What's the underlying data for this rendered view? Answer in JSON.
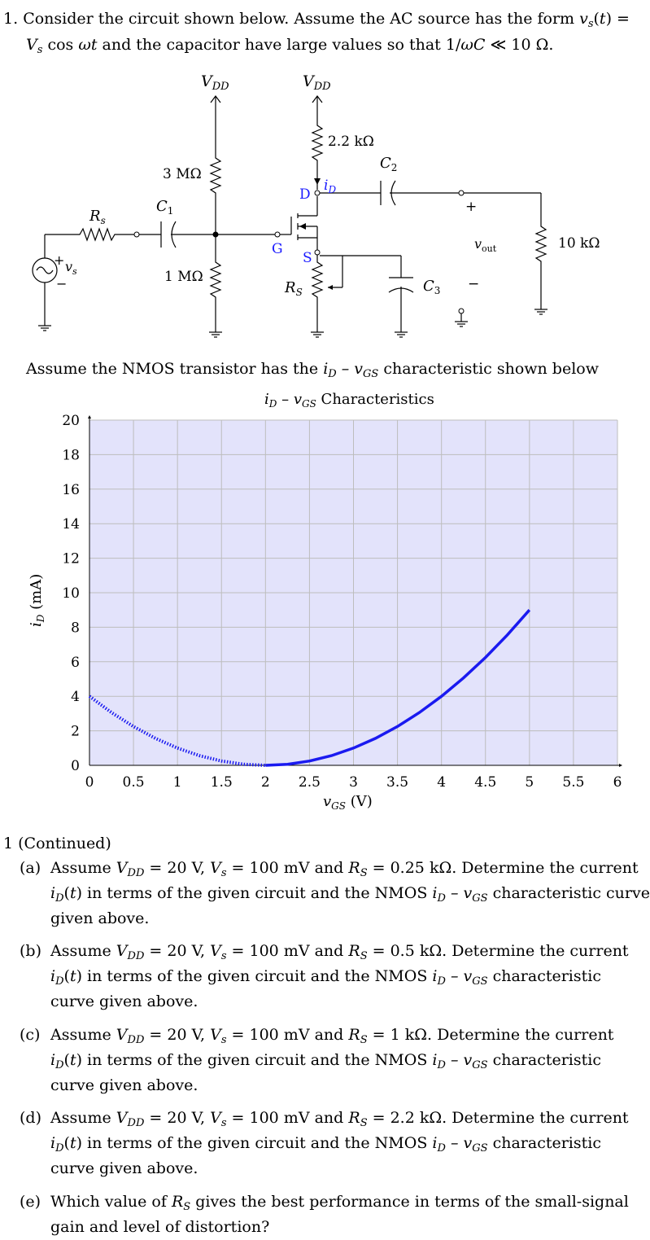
{
  "problem": {
    "number": "1.",
    "intro_line1_text": "Consider the circuit shown below. Assume the AC source has the form",
    "intro_line2_a": "cos",
    "intro_line2_b": "and the capacitor have large values so that 1/",
    "intro_line2_c": "≪ 10 Ω.",
    "assume_text": "Assume the NMOS transistor has the",
    "assume_tail": "characteristic shown below"
  },
  "circuit": {
    "vdd_label": "V",
    "vdd_sub": "DD",
    "r_top_drain": "2.2 kΩ",
    "r_bias_top": "3 MΩ",
    "r_bias_bottom": "1 MΩ",
    "r_source_label": "R",
    "r_source_sub": "S",
    "r_series_label": "R",
    "r_series_sub": "s",
    "r_load": "10 kΩ",
    "cap1": "C",
    "cap1_sub": "1",
    "cap2": "C",
    "cap2_sub": "2",
    "cap3": "C",
    "cap3_sub": "3",
    "drain_label": "D",
    "gate_label": "G",
    "source_label": "S",
    "id_label": "i",
    "id_sub": "D",
    "vs_label": "v",
    "vs_sub": "s",
    "vout_label": "v",
    "vout_sub": "out",
    "plus": "+",
    "minus": "−",
    "label_color": "#1a1aff"
  },
  "chart_data": {
    "type": "line",
    "title": "i_D – v_GS Characteristics",
    "xlabel": "v_GS (V)",
    "ylabel": "i_D (mA)",
    "xlim": [
      0,
      6
    ],
    "ylim": [
      0,
      20
    ],
    "xticks": [
      "0",
      "0.5",
      "1",
      "1.5",
      "2",
      "2.5",
      "3",
      "3.5",
      "4",
      "4.5",
      "5",
      "5.5",
      "6"
    ],
    "yticks": [
      "0",
      "2",
      "4",
      "6",
      "8",
      "10",
      "12",
      "14",
      "16",
      "18",
      "20"
    ],
    "grid": true,
    "background": "#e3e3fb",
    "line_color": "#1a1af0",
    "series": [
      {
        "style": "dotted",
        "x": [
          0,
          0.25,
          0.5,
          0.75,
          1,
          1.25,
          1.5,
          1.75,
          2
        ],
        "y": [
          4,
          3.06,
          2.25,
          1.56,
          1,
          0.56,
          0.25,
          0.06,
          0
        ]
      },
      {
        "style": "solid",
        "x": [
          2,
          2.25,
          2.5,
          2.75,
          3,
          3.25,
          3.5,
          3.75,
          4,
          4.25,
          4.5,
          4.75,
          5
        ],
        "y": [
          0,
          0.06,
          0.25,
          0.56,
          1,
          1.56,
          2.25,
          3.06,
          4,
          5.06,
          6.25,
          7.56,
          9
        ]
      }
    ]
  },
  "continued": {
    "heading": "1 (Continued)",
    "items": [
      {
        "label": "(a)",
        "rs": "0.25 kΩ"
      },
      {
        "label": "(b)",
        "rs": "0.5 kΩ"
      },
      {
        "label": "(c)",
        "rs": "1 kΩ"
      },
      {
        "label": "(d)",
        "rs": "2.2 kΩ"
      }
    ],
    "assume_word": "Assume",
    "vdd_value": "= 20 V,",
    "vs_value": "= 100 mV and",
    "determine": ". Determine the current",
    "in_terms": "in terms of the given circuit and the NMOS",
    "char_curve": "characteristic curve",
    "char_word": "characteristic",
    "curve_given": "curve given above.",
    "given_above": "given above.",
    "item_e_label": "(e)",
    "item_e_line1": "Which value of",
    "item_e_line1_tail": "gives the best performance in terms of the small-signal",
    "item_e_line2": "gain and level of distortion?"
  }
}
